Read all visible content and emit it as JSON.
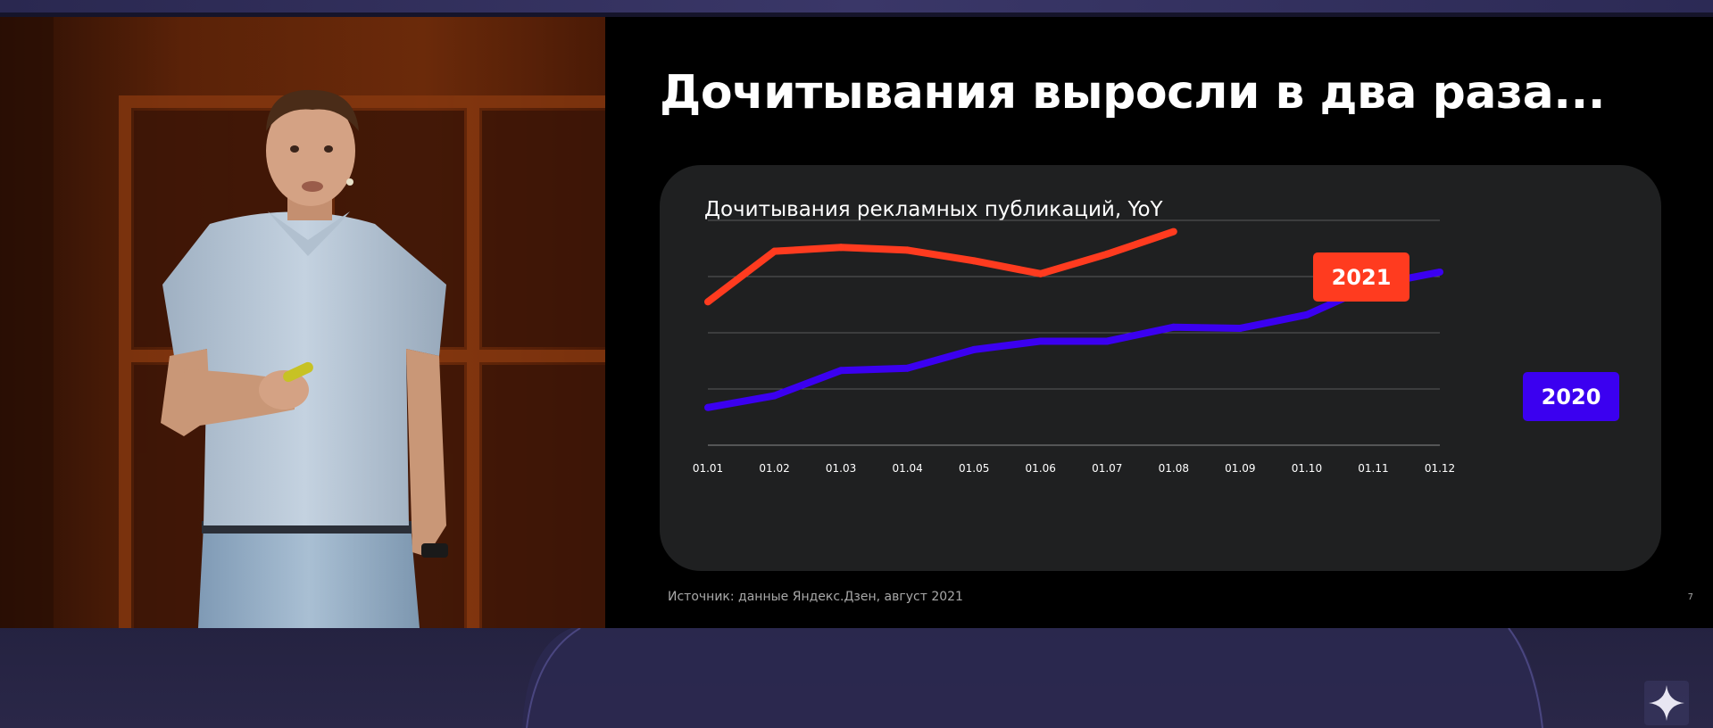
{
  "slide": {
    "title": "Дочитывания выросли в два раза...",
    "source": "Источник: данные Яндекс.Дзен, август 2021",
    "page_number": "7"
  },
  "colors": {
    "series_2021": "#ff3b1f",
    "series_2020": "#3b00f0",
    "card_background": "#1f2021",
    "slide_background": "#000000"
  },
  "icons": {
    "corner": "sparkle-icon"
  },
  "chart_data": {
    "type": "line",
    "title": "Дочитывания рекламных публикаций, YoY",
    "xlabel": "",
    "ylabel": "",
    "categories": [
      "01.01",
      "01.02",
      "01.03",
      "01.04",
      "01.05",
      "01.06",
      "01.07",
      "01.08",
      "01.09",
      "01.10",
      "01.11",
      "01.12"
    ],
    "ylim": [
      0,
      4
    ],
    "grid": true,
    "y_axis_labels": false,
    "series": [
      {
        "name": "2021",
        "color": "#ff3b1f",
        "values": [
          2.55,
          3.45,
          3.52,
          3.47,
          3.28,
          3.05,
          3.4,
          3.8,
          null,
          null,
          null,
          null
        ]
      },
      {
        "name": "2020",
        "color": "#3b00f0",
        "values": [
          0.67,
          0.88,
          1.33,
          1.37,
          1.7,
          1.85,
          1.85,
          2.1,
          2.08,
          2.32,
          2.85,
          3.08
        ]
      }
    ]
  }
}
